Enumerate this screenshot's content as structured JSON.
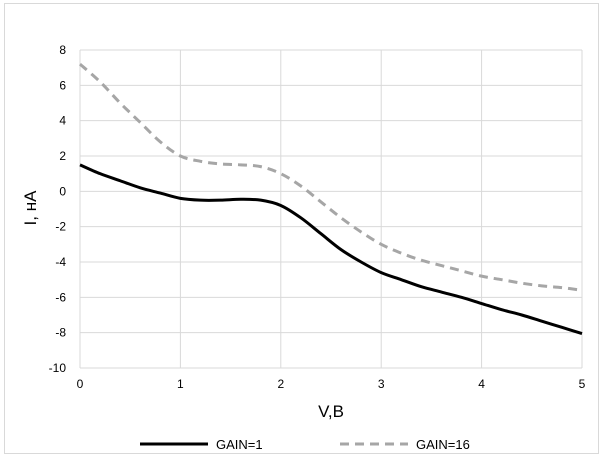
{
  "chart_data": {
    "type": "line",
    "xlabel": "V,B",
    "ylabel": "I, нА",
    "xlim": [
      0,
      5
    ],
    "ylim": [
      -10,
      8
    ],
    "xticks": [
      0,
      1,
      2,
      3,
      4,
      5
    ],
    "yticks": [
      -10,
      -8,
      -6,
      -4,
      -2,
      0,
      2,
      4,
      6,
      8
    ],
    "grid": true,
    "legend_position": "bottom",
    "series": [
      {
        "name": "GAIN=1",
        "color": "#000000",
        "dash": "solid",
        "x": [
          0,
          0.2,
          0.4,
          0.6,
          0.8,
          1.0,
          1.2,
          1.4,
          1.6,
          1.8,
          2.0,
          2.2,
          2.4,
          2.6,
          2.8,
          3.0,
          3.2,
          3.4,
          3.6,
          3.8,
          4.0,
          4.2,
          4.4,
          4.6,
          4.8,
          5.0
        ],
        "y": [
          1.5,
          1.0,
          0.6,
          0.2,
          -0.1,
          -0.4,
          -0.5,
          -0.5,
          -0.45,
          -0.5,
          -0.8,
          -1.5,
          -2.4,
          -3.3,
          -4.0,
          -4.6,
          -5.0,
          -5.4,
          -5.7,
          -6.0,
          -6.35,
          -6.7,
          -7.0,
          -7.35,
          -7.7,
          -8.05
        ]
      },
      {
        "name": "GAIN=16",
        "color": "#a6a6a6",
        "dash": "dashed",
        "x": [
          0,
          0.2,
          0.4,
          0.6,
          0.8,
          1.0,
          1.2,
          1.4,
          1.6,
          1.8,
          2.0,
          2.2,
          2.4,
          2.6,
          2.8,
          3.0,
          3.2,
          3.4,
          3.6,
          3.8,
          4.0,
          4.2,
          4.4,
          4.6,
          4.8,
          5.0
        ],
        "y": [
          7.2,
          6.2,
          5.0,
          3.9,
          2.8,
          2.0,
          1.7,
          1.55,
          1.5,
          1.4,
          1.0,
          0.3,
          -0.6,
          -1.5,
          -2.3,
          -3.0,
          -3.5,
          -3.9,
          -4.2,
          -4.5,
          -4.8,
          -5.0,
          -5.2,
          -5.35,
          -5.45,
          -5.6
        ]
      }
    ]
  }
}
